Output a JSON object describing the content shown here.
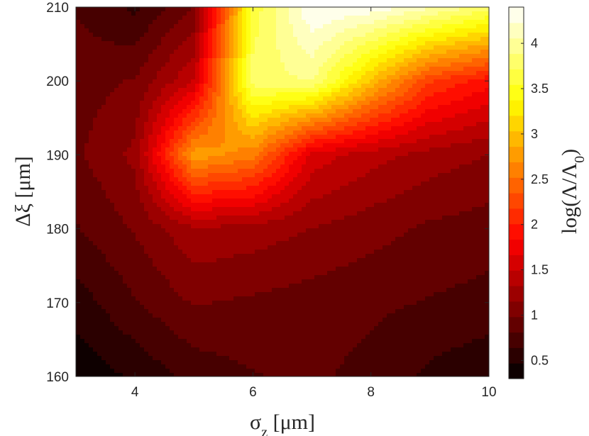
{
  "chart_data": {
    "type": "heatmap",
    "style": "filled-contour",
    "colormap": "hot",
    "x_values": [
      3,
      4,
      5,
      6,
      7,
      8,
      9,
      10
    ],
    "y_values": [
      160,
      170,
      180,
      190,
      200,
      210
    ],
    "z_values": [
      [
        0.35,
        0.5,
        0.7,
        0.8,
        0.85,
        0.75,
        0.6,
        0.5
      ],
      [
        0.55,
        0.8,
        1.0,
        0.95,
        0.9,
        0.85,
        0.8,
        0.75
      ],
      [
        0.8,
        1.0,
        1.3,
        1.25,
        1.15,
        1.05,
        0.95,
        0.9
      ],
      [
        0.95,
        1.2,
        2.8,
        2.6,
        1.6,
        1.4,
        1.25,
        1.15
      ],
      [
        0.9,
        1.0,
        1.5,
        3.8,
        3.9,
        3.0,
        2.2,
        1.9
      ],
      [
        0.8,
        0.6,
        1.0,
        3.6,
        4.4,
        4.35,
        4.1,
        3.8
      ]
    ],
    "xlim": [
      3,
      10
    ],
    "ylim": [
      160,
      210
    ],
    "x_ticks": [
      "4",
      "6",
      "8",
      "10"
    ],
    "y_ticks": [
      "160",
      "170",
      "180",
      "190",
      "200",
      "210"
    ],
    "xlabel": "σ_z [μm]",
    "ylabel": "Δξ [μm]",
    "colorbar": {
      "label": "log(Λ/Λ_0)",
      "range": [
        0.3,
        4.4
      ],
      "ticks": [
        "0.5",
        "1",
        "1.5",
        "2",
        "2.5",
        "3",
        "3.5",
        "4"
      ]
    },
    "grid": false
  }
}
